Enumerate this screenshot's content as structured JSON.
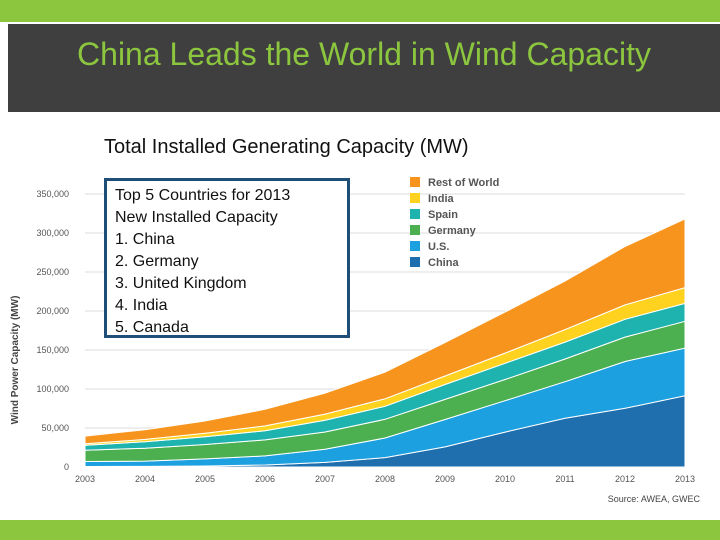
{
  "slide": {
    "title": "China Leads the World in Wind Capacity",
    "subtitle": "Total Installed Generating Capacity (MW)",
    "source": "Source: AWEA, GWEC",
    "accent_color": "#8cc63f",
    "title_bar_color": "#3f3f3f"
  },
  "top5": {
    "heading_line1": "Top 5 Countries for 2013",
    "heading_line2": "New Installed Capacity",
    "items": [
      "1.  China",
      "2.  Germany",
      "3.  United Kingdom",
      "4.  India",
      "5.  Canada"
    ]
  },
  "chart_data": {
    "type": "area",
    "stacked": true,
    "title": "Total Installed Generating Capacity (MW)",
    "xlabel": "",
    "ylabel": "Wind Power Capacity (MW)",
    "x": [
      "2003",
      "2004",
      "2005",
      "2006",
      "2007",
      "2008",
      "2009",
      "2010",
      "2011",
      "2012",
      "2013"
    ],
    "ylim": [
      0,
      350000
    ],
    "yticks": [
      "0",
      "50,000",
      "100,000",
      "150,000",
      "200,000",
      "250,000",
      "300,000",
      "350,000"
    ],
    "legend_position": "top-right",
    "series": [
      {
        "name": "China",
        "color": "#1f6fae",
        "values": [
          600,
          800,
          1300,
          2600,
          5900,
          12000,
          25800,
          44700,
          62400,
          75300,
          91400
        ]
      },
      {
        "name": "U.S.",
        "color": "#1ca0e0",
        "values": [
          6400,
          6700,
          9100,
          11600,
          16800,
          25200,
          35100,
          40300,
          46900,
          60000,
          61100
        ]
      },
      {
        "name": "Germany",
        "color": "#4caf50",
        "values": [
          14600,
          16600,
          18400,
          20600,
          22200,
          23900,
          25800,
          27200,
          29100,
          31300,
          34300
        ]
      },
      {
        "name": "Spain",
        "color": "#1fb3b0",
        "values": [
          6200,
          8300,
          10000,
          11600,
          15100,
          16700,
          19100,
          20700,
          21700,
          22800,
          23000
        ]
      },
      {
        "name": "India",
        "color": "#ffd21f",
        "values": [
          2100,
          3000,
          4400,
          6300,
          7800,
          9600,
          10900,
          13100,
          16100,
          18400,
          20200
        ]
      },
      {
        "name": "Rest of World",
        "color": "#f7941d",
        "values": [
          9700,
          12400,
          15800,
          21300,
          26800,
          34100,
          42900,
          52600,
          62300,
          74900,
          88100
        ]
      }
    ]
  }
}
